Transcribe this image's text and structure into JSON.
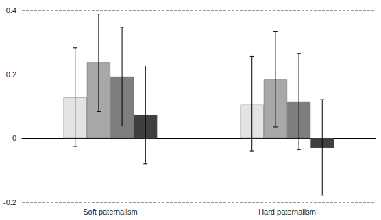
{
  "chart_data": {
    "type": "bar",
    "categories": [
      "Soft paternalism",
      "Hard paternalism"
    ],
    "series": [
      {
        "color": "#e3e3e3",
        "values": [
          0.128,
          0.106
        ],
        "errors": [
          [
            -0.025,
            0.283
          ],
          [
            -0.04,
            0.256
          ]
        ]
      },
      {
        "color": "#a8a8a8",
        "values": [
          0.237,
          0.184
        ],
        "errors": [
          [
            0.083,
            0.388
          ],
          [
            0.035,
            0.333
          ]
        ]
      },
      {
        "color": "#7e7e7e",
        "values": [
          0.193,
          0.114
        ],
        "errors": [
          [
            0.038,
            0.347
          ],
          [
            -0.035,
            0.265
          ]
        ]
      },
      {
        "color": "#3f3f3f",
        "values": [
          0.073,
          -0.03
        ],
        "errors": [
          [
            -0.08,
            0.226
          ],
          [
            -0.178,
            0.12
          ]
        ]
      }
    ],
    "ylim": [
      -0.2,
      0.4
    ],
    "yticks": [
      -0.2,
      0,
      0.2,
      0.4
    ],
    "grid": true
  }
}
